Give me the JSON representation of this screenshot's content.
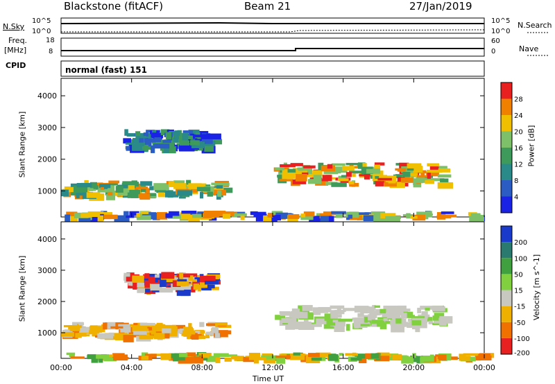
{
  "header": {
    "title": "Blackstone (fitACF)",
    "beam": "Beam 21",
    "date": "27/Jan/2019"
  },
  "params": {
    "nsky_label": "N.Sky",
    "nsearch_label": "N.Search",
    "nsky_ticks": [
      "10^5",
      "10^0"
    ],
    "nsearch_ticks": [
      "10^5",
      "10^0"
    ],
    "freq_label_1": "Freq.",
    "freq_label_2": "[MHz]",
    "freq_ticks": [
      "18",
      "8"
    ],
    "nave_label": "Nave",
    "nave_ticks": [
      "60",
      "0"
    ],
    "cpid_label": "CPID",
    "cpid_value": "normal (fast) 151"
  },
  "xaxis": {
    "label": "Time UT",
    "ticks": [
      "00:00",
      "04:00",
      "08:00",
      "12:00",
      "16:00",
      "20:00",
      "00:00"
    ]
  },
  "chart_data": [
    {
      "type": "heatmap",
      "title": "",
      "ylabel": "Slant Range [km]",
      "yticks": [
        "1000",
        "2000",
        "3000",
        "4000"
      ],
      "ylim": [
        180,
        4550
      ],
      "xlim": [
        0,
        24
      ],
      "colorbar": {
        "label": "Power [dB]",
        "ticks": [
          "4",
          "8",
          "12",
          "16",
          "20",
          "24",
          "28"
        ],
        "colors": [
          "#1a22e6",
          "#2b5cc4",
          "#2a8a8a",
          "#3d9a5a",
          "#7ec06a",
          "#f0c000",
          "#f08000",
          "#e82020"
        ]
      },
      "regions": [
        {
          "t0": 0.0,
          "t1": 9.0,
          "r0": 900,
          "r1": 1350,
          "level": "high"
        },
        {
          "t0": 3.5,
          "t1": 8.3,
          "r0": 2400,
          "r1": 2950,
          "level": "low"
        },
        {
          "t0": 12.0,
          "t1": 21.5,
          "r0": 1250,
          "r1": 1900,
          "level": "very high"
        },
        {
          "t0": 0.0,
          "t1": 24.0,
          "r0": 200,
          "r1": 380,
          "level": "mixed"
        }
      ]
    },
    {
      "type": "heatmap",
      "title": "",
      "ylabel": "Slant Range [km]",
      "yticks": [
        "1000",
        "2000",
        "3000",
        "4000"
      ],
      "ylim": [
        180,
        4550
      ],
      "xlim": [
        0,
        24
      ],
      "colorbar": {
        "label": "Velocity [m s^-1]",
        "ticks": [
          "200",
          "100",
          "50",
          "15",
          "-15",
          "-50",
          "-100",
          "-200"
        ],
        "colors": [
          "#1a3acc",
          "#2a7a70",
          "#40a040",
          "#80d040",
          "#c8c8c0",
          "#f0b000",
          "#f07000",
          "#e82020"
        ]
      },
      "regions": [
        {
          "t0": 0.0,
          "t1": 9.0,
          "r0": 900,
          "r1": 1350,
          "level": "negative"
        },
        {
          "t0": 3.5,
          "t1": 8.3,
          "r0": 2400,
          "r1": 2950,
          "level": "mixed"
        },
        {
          "t0": 12.0,
          "t1": 21.5,
          "r0": 1250,
          "r1": 1900,
          "level": "near zero"
        },
        {
          "t0": 0.0,
          "t1": 24.0,
          "r0": 200,
          "r1": 380,
          "level": "positive"
        }
      ]
    }
  ]
}
